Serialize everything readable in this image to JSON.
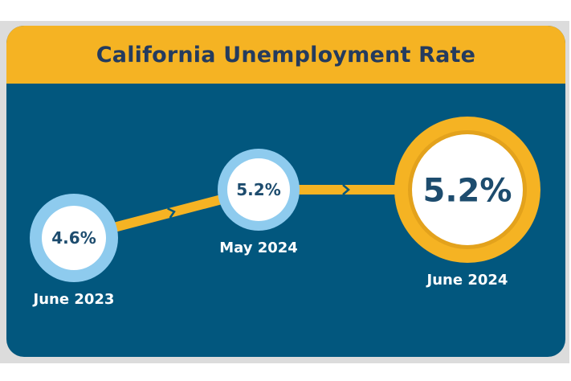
{
  "chart_data": {
    "type": "line",
    "title": "California Unemployment Rate",
    "categories": [
      "June 2023",
      "May 2024",
      "June 2024"
    ],
    "values": [
      4.6,
      5.2,
      5.2
    ],
    "value_labels": [
      "4.6%",
      "5.2%",
      "5.2%"
    ],
    "unit": "%",
    "legend": "none",
    "grid": false
  },
  "colors": {
    "panel": "#02577e",
    "header": "#f5b323",
    "title_text": "#243b5e",
    "line": "#f5b323",
    "ring_past": "#8ecbee",
    "ring_current": "#f5b323",
    "value_text": "#1d4c6e",
    "category_text": "#ffffff"
  }
}
